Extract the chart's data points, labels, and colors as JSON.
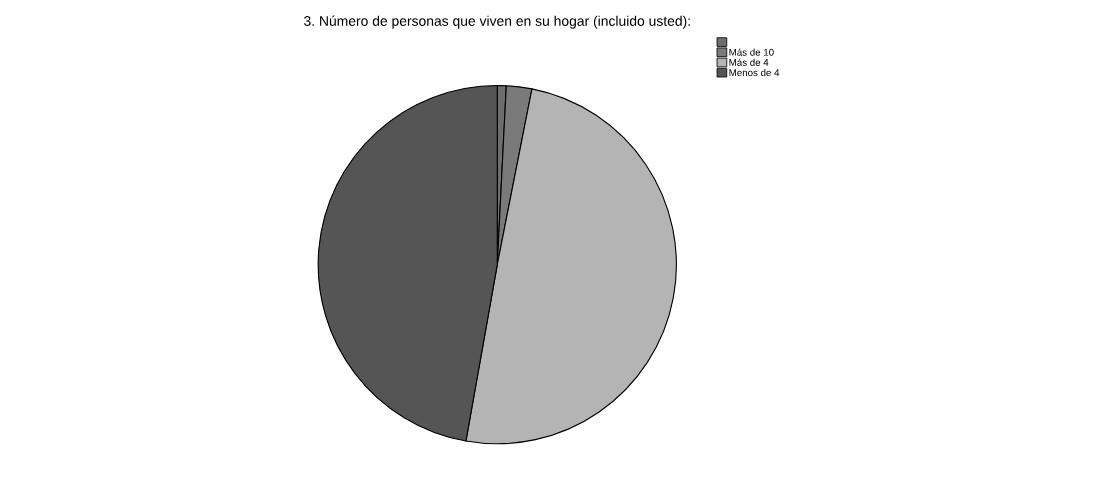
{
  "chart_data": {
    "type": "pie",
    "title": "3. Número de personas que viven en su hogar (incluido usted):",
    "categories": [
      null,
      "Más de 10",
      "Más de 4",
      "Menos de 4"
    ],
    "values": [
      0.8,
      2.3,
      49.7,
      47.2
    ],
    "colors": [
      "#6e6e6e",
      "#7a7a7a",
      "#b4b4b4",
      "#555555"
    ],
    "legend": "top right"
  }
}
